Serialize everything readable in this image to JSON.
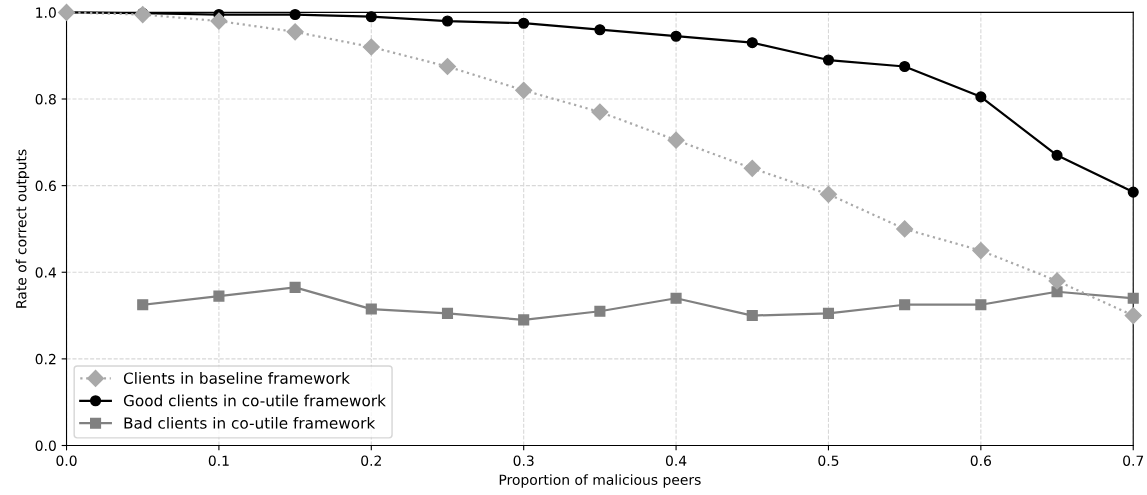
{
  "chart_data": {
    "type": "line",
    "xlabel": "Proportion of malicious peers",
    "ylabel": "Rate of correct outputs",
    "x": [
      0,
      0.05,
      0.1,
      0.15,
      0.2,
      0.25,
      0.3,
      0.35,
      0.4,
      0.45,
      0.5,
      0.55,
      0.6,
      0.65,
      0.7
    ],
    "series": [
      {
        "name": "Clients in baseline framework",
        "color": "#a9a9a9",
        "marker": "diamond",
        "line_style": "dotted",
        "values": [
          1.0,
          0.995,
          0.98,
          0.955,
          0.92,
          0.875,
          0.82,
          0.77,
          0.705,
          0.64,
          0.58,
          0.5,
          0.45,
          0.38,
          0.3
        ]
      },
      {
        "name": "Good clients in co-utile framework",
        "color": "#000000",
        "marker": "circle",
        "line_style": "solid",
        "values": [
          1.0,
          0.998,
          0.995,
          0.995,
          0.99,
          0.98,
          0.975,
          0.96,
          0.945,
          0.93,
          0.89,
          0.875,
          0.805,
          0.67,
          0.585
        ]
      },
      {
        "name": "Bad clients in co-utile framework",
        "color": "#808080",
        "marker": "square",
        "line_style": "solid",
        "values": [
          null,
          0.325,
          0.345,
          0.365,
          0.315,
          0.305,
          0.29,
          0.31,
          0.34,
          0.3,
          0.305,
          0.325,
          0.325,
          0.355,
          0.34
        ]
      }
    ],
    "xlim": [
      0,
      0.7
    ],
    "xticks": [
      {
        "value": 0,
        "label": "0.0"
      },
      0.1,
      0.2,
      0.3,
      0.4,
      0.5,
      0.6,
      0.7
    ],
    "ylim": [
      0,
      1
    ],
    "yticks": [
      {
        "value": 0,
        "label": "0.0"
      },
      0.2,
      0.4,
      0.6,
      0.8,
      {
        "value": 1,
        "label": "1.0"
      }
    ],
    "grid": true,
    "legend": "bottom left"
  }
}
